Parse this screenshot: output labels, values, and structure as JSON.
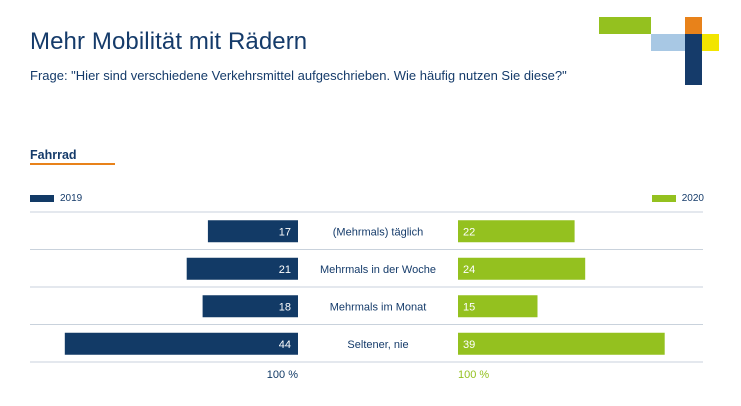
{
  "header": {
    "title": "Mehr Mobilität mit Rädern",
    "subtitle": "Frage: \"Hier sind verschiedene Verkehrsmittel aufgeschrieben. Wie häufig nutzen Sie diese?\""
  },
  "section": {
    "label": "Fahrrad"
  },
  "colors": {
    "series_2019": "#123a66",
    "series_2020": "#94c11f",
    "accent_orange": "#e8821a",
    "light_blue": "#a8c8e4",
    "yellow": "#f2e500",
    "gridline": "#c9d2dc"
  },
  "chart_data": {
    "type": "bar",
    "orientation": "horizontal-butterfly",
    "categories": [
      "(Mehrmals) täglich",
      "Mehrmals in der Woche",
      "Mehrmals im Monat",
      "Seltener, nie"
    ],
    "series": [
      {
        "name": "2019",
        "values": [
          17,
          21,
          18,
          44
        ],
        "total_label": "100 %",
        "side": "left"
      },
      {
        "name": "2020",
        "values": [
          22,
          24,
          15,
          39
        ],
        "total_label": "100 %",
        "side": "right"
      }
    ],
    "legend_placement": "top-left and top-right",
    "grid": "horizontal separators"
  }
}
